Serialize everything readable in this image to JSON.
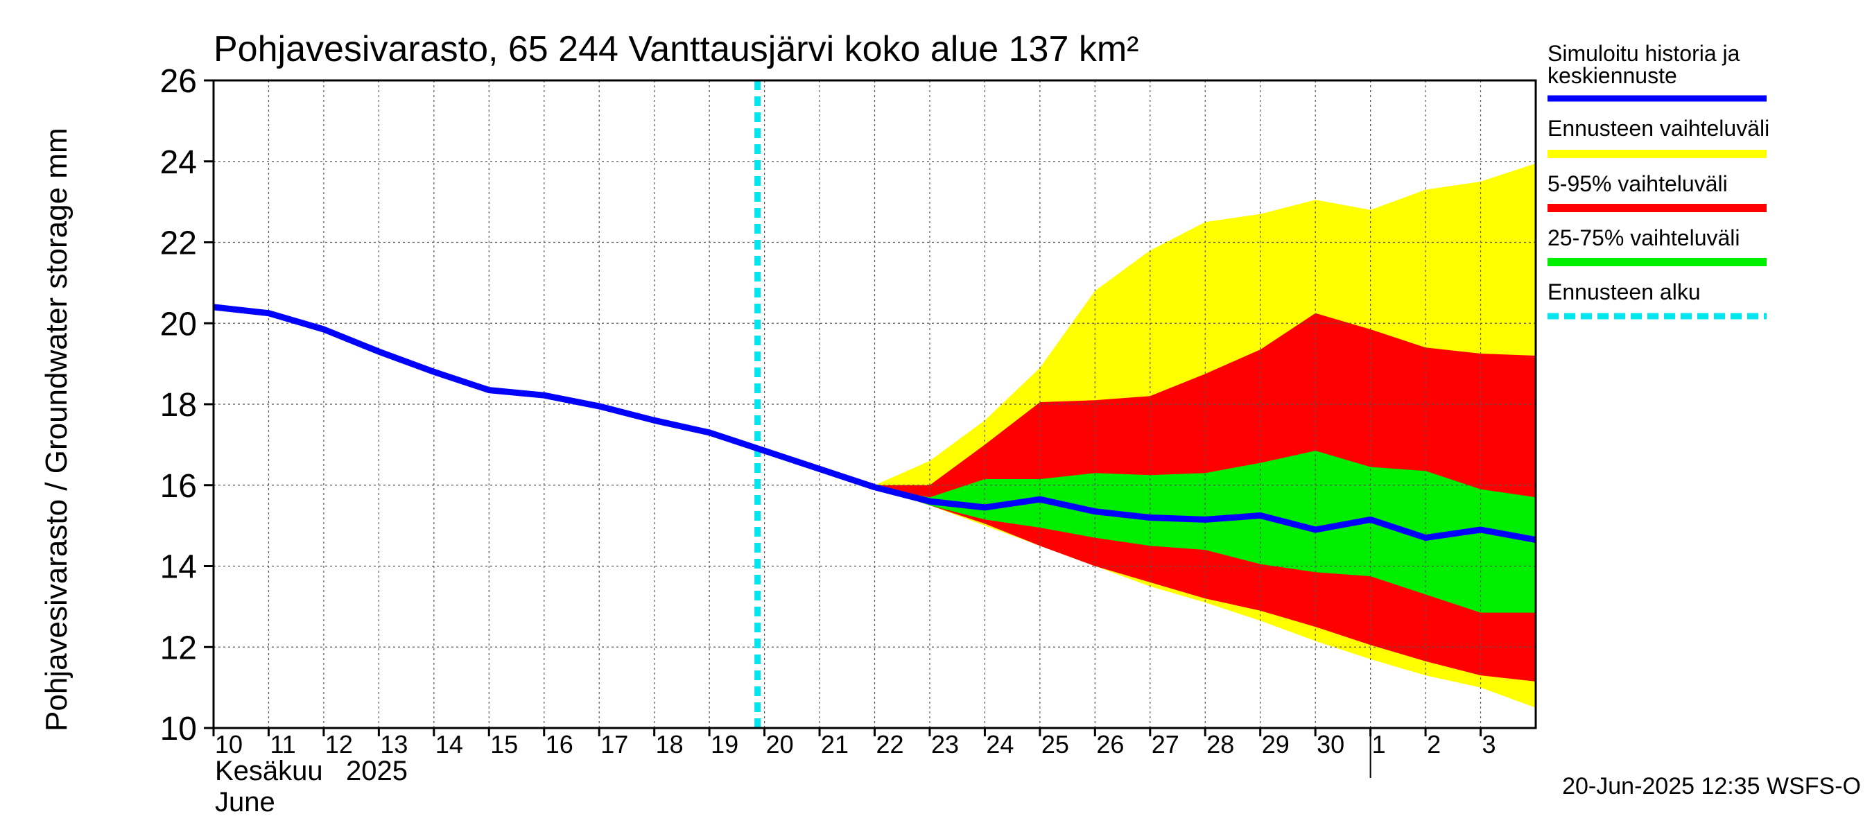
{
  "chart_data": {
    "type": "area",
    "title": "Pohjavesivarasto, 65 244 Vanttausjärvi koko alue 137 km²",
    "ylabel": "Pohjavesivarasto / Groundwater storage   mm",
    "ylim": [
      10,
      26
    ],
    "y_ticks": [
      10,
      12,
      14,
      16,
      18,
      20,
      22,
      24,
      26
    ],
    "x_range": [
      "2025-06-10",
      "2025-07-04"
    ],
    "x_tick_labels": [
      {
        "date": "2025-06-10",
        "label": "10"
      },
      {
        "date": "2025-06-11",
        "label": "11"
      },
      {
        "date": "2025-06-12",
        "label": "12"
      },
      {
        "date": "2025-06-13",
        "label": "13"
      },
      {
        "date": "2025-06-14",
        "label": "14"
      },
      {
        "date": "2025-06-15",
        "label": "15"
      },
      {
        "date": "2025-06-16",
        "label": "16"
      },
      {
        "date": "2025-06-17",
        "label": "17"
      },
      {
        "date": "2025-06-18",
        "label": "18"
      },
      {
        "date": "2025-06-19",
        "label": "19"
      },
      {
        "date": "2025-06-20",
        "label": "20"
      },
      {
        "date": "2025-06-21",
        "label": "21"
      },
      {
        "date": "2025-06-22",
        "label": "22"
      },
      {
        "date": "2025-06-23",
        "label": "23"
      },
      {
        "date": "2025-06-24",
        "label": "24"
      },
      {
        "date": "2025-06-25",
        "label": "25"
      },
      {
        "date": "2025-06-26",
        "label": "26"
      },
      {
        "date": "2025-06-27",
        "label": "27"
      },
      {
        "date": "2025-06-28",
        "label": "28"
      },
      {
        "date": "2025-06-29",
        "label": "29"
      },
      {
        "date": "2025-06-30",
        "label": "30"
      },
      {
        "date": "2025-07-01",
        "label": "1"
      },
      {
        "date": "2025-07-02",
        "label": "2"
      },
      {
        "date": "2025-07-03",
        "label": "3"
      }
    ],
    "month_label_fi": "Kesäkuu   2025",
    "month_label_en": "June",
    "grid": true,
    "legend_position": "right",
    "legend": [
      {
        "label": "Simuloitu historia ja\nkeskiennuste",
        "color": "#0000ff",
        "style": "line"
      },
      {
        "label": "Ennusteen vaihteluväli",
        "color": "#ffff00",
        "style": "band"
      },
      {
        "label": "5-95% vaihteluväli",
        "color": "#ff0000",
        "style": "band"
      },
      {
        "label": "25-75% vaihteluväli",
        "color": "#00ee00",
        "style": "band"
      },
      {
        "label": "Ennusteen alku",
        "color": "#00e5ee",
        "style": "dashed"
      }
    ],
    "forecast_start": "2025-06-19T21:00",
    "series": [
      {
        "name": "Simuloitu historia ja keskiennuste",
        "color": "#0000ff",
        "points": [
          [
            "2025-06-10",
            20.4
          ],
          [
            "2025-06-11",
            20.25
          ],
          [
            "2025-06-12",
            19.85
          ],
          [
            "2025-06-13",
            19.3
          ],
          [
            "2025-06-14",
            18.8
          ],
          [
            "2025-06-15",
            18.35
          ],
          [
            "2025-06-16",
            18.22
          ],
          [
            "2025-06-17",
            17.95
          ],
          [
            "2025-06-18",
            17.6
          ],
          [
            "2025-06-19",
            17.3
          ],
          [
            "2025-06-20",
            16.85
          ],
          [
            "2025-06-21",
            16.4
          ],
          [
            "2025-06-22",
            15.95
          ],
          [
            "2025-06-23",
            15.6
          ],
          [
            "2025-06-24",
            15.45
          ],
          [
            "2025-06-25",
            15.65
          ],
          [
            "2025-06-26",
            15.35
          ],
          [
            "2025-06-27",
            15.2
          ],
          [
            "2025-06-28",
            15.15
          ],
          [
            "2025-06-29",
            15.25
          ],
          [
            "2025-06-30",
            14.9
          ],
          [
            "2025-07-01",
            15.15
          ],
          [
            "2025-07-02",
            14.7
          ],
          [
            "2025-07-03",
            14.9
          ],
          [
            "2025-07-04",
            14.65
          ]
        ]
      }
    ],
    "bands": [
      {
        "name": "Ennusteen vaihteluväli",
        "color": "#ffff00",
        "dates": [
          "2025-06-22",
          "2025-06-23",
          "2025-06-24",
          "2025-06-25",
          "2025-06-26",
          "2025-06-27",
          "2025-06-28",
          "2025-06-29",
          "2025-06-30",
          "2025-07-01",
          "2025-07-02",
          "2025-07-03",
          "2025-07-04"
        ],
        "upper": [
          16.0,
          16.6,
          17.6,
          18.9,
          20.8,
          21.8,
          22.5,
          22.7,
          23.05,
          22.8,
          23.3,
          23.5,
          23.95
        ],
        "lower": [
          15.95,
          15.5,
          15.0,
          14.5,
          14.0,
          13.5,
          13.1,
          12.65,
          12.15,
          11.7,
          11.3,
          11.0,
          10.5
        ]
      },
      {
        "name": "5-95% vaihteluväli",
        "color": "#ff0000",
        "dates": [
          "2025-06-22",
          "2025-06-23",
          "2025-06-24",
          "2025-06-25",
          "2025-06-26",
          "2025-06-27",
          "2025-06-28",
          "2025-06-29",
          "2025-06-30",
          "2025-07-01",
          "2025-07-02",
          "2025-07-03",
          "2025-07-04"
        ],
        "upper": [
          16.0,
          16.0,
          17.0,
          18.05,
          18.1,
          18.2,
          18.75,
          19.35,
          20.25,
          19.85,
          19.4,
          19.25,
          19.2
        ],
        "lower": [
          15.95,
          15.5,
          15.05,
          14.5,
          14.0,
          13.6,
          13.2,
          12.9,
          12.5,
          12.05,
          11.65,
          11.3,
          11.15
        ]
      },
      {
        "name": "25-75% vaihteluväli",
        "color": "#00ee00",
        "dates": [
          "2025-06-22",
          "2025-06-23",
          "2025-06-24",
          "2025-06-25",
          "2025-06-26",
          "2025-06-27",
          "2025-06-28",
          "2025-06-29",
          "2025-06-30",
          "2025-07-01",
          "2025-07-02",
          "2025-07-03",
          "2025-07-04"
        ],
        "upper": [
          15.95,
          15.7,
          16.15,
          16.15,
          16.3,
          16.25,
          16.3,
          16.55,
          16.85,
          16.45,
          16.35,
          15.9,
          15.7
        ],
        "lower": [
          15.95,
          15.5,
          15.15,
          14.95,
          14.7,
          14.5,
          14.4,
          14.05,
          13.85,
          13.75,
          13.3,
          12.85,
          12.85
        ]
      }
    ],
    "footer": "20-Jun-2025 12:35 WSFS-O"
  }
}
